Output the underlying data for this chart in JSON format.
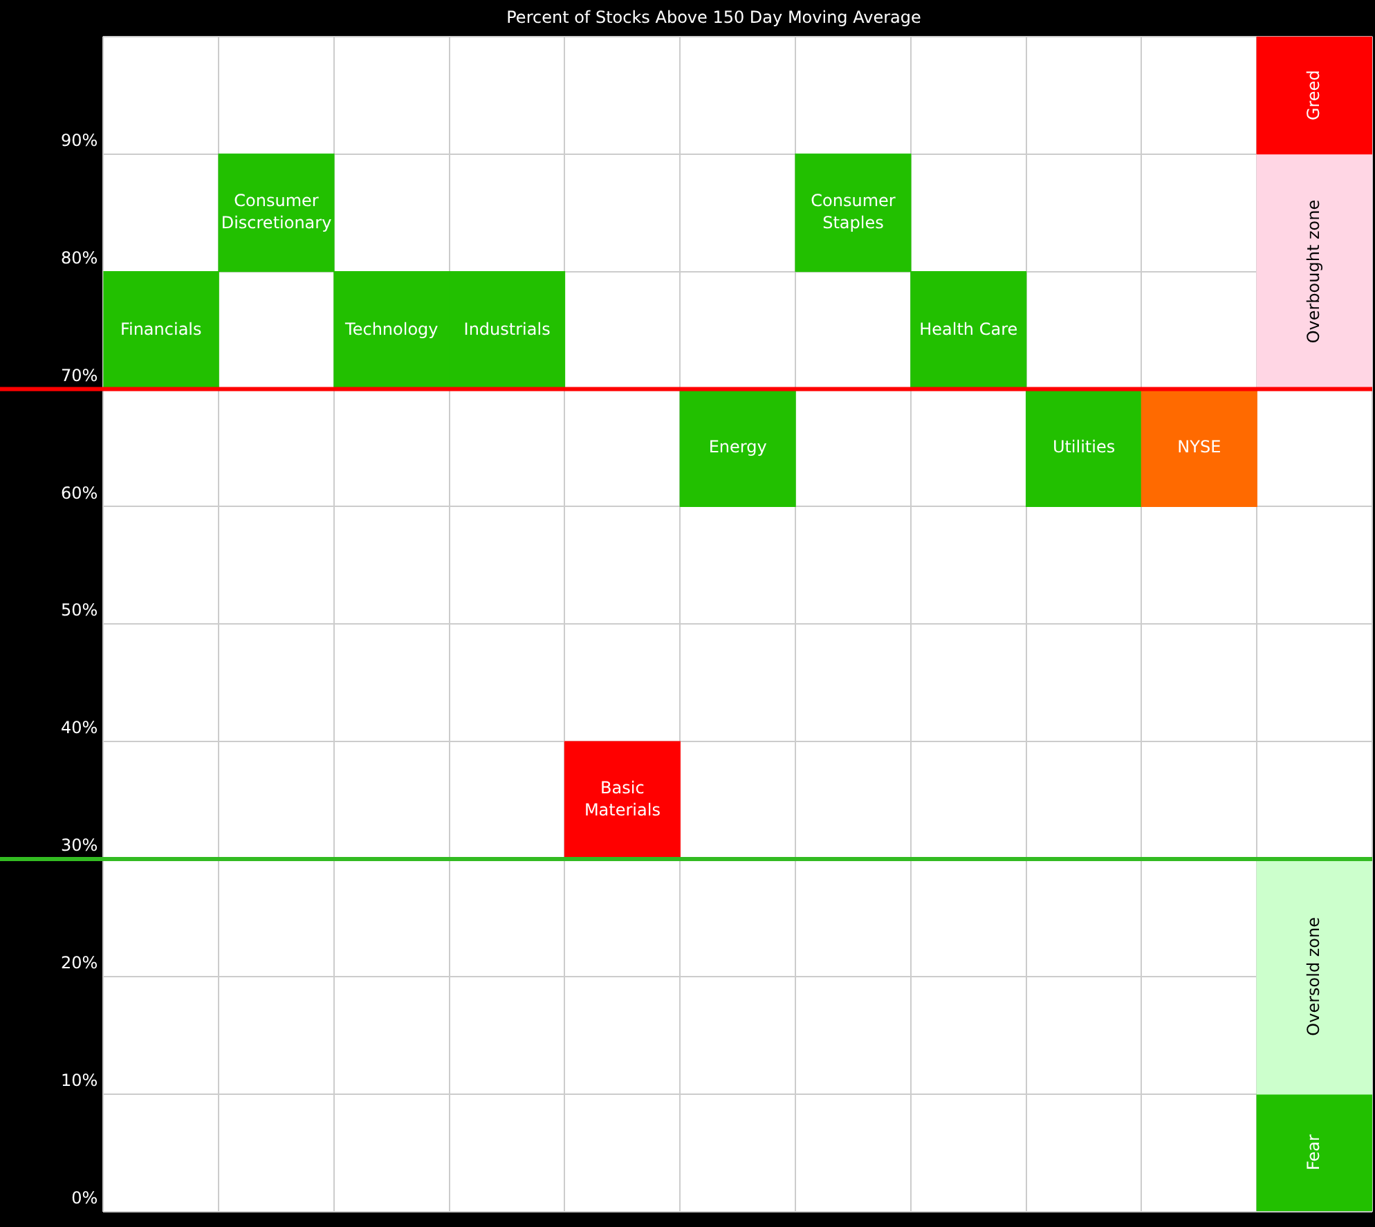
{
  "chart_data": {
    "type": "bar",
    "title": "Percent of Stocks Above 150 Day Moving Average",
    "categories": [
      "Financials",
      "Consumer Discretionary",
      "Technology",
      "Industrials",
      "Basic Materials",
      "Energy",
      "Consumer Staples",
      "Health Care",
      "Utilities",
      "NYSE",
      null
    ],
    "series": [
      {
        "colors": [
          "#22c000",
          "#22c000",
          "#22c000",
          "#22c000",
          "#ff0000",
          "#22c000",
          "#22c000",
          "#22c000",
          "#22c000",
          "#ff6a00",
          null
        ],
        "values": [
          10,
          10,
          10,
          10,
          10,
          10,
          10,
          10,
          10,
          10,
          null
        ],
        "base": [
          70,
          80,
          70,
          70,
          30,
          60,
          80,
          70,
          60,
          60,
          null
        ]
      },
      {
        "name": "Greed",
        "color": "#ff0000",
        "values": [
          null,
          null,
          null,
          null,
          null,
          null,
          null,
          null,
          null,
          null,
          10
        ],
        "base": [
          null,
          null,
          null,
          null,
          null,
          null,
          null,
          null,
          null,
          null,
          90
        ]
      },
      {
        "name": "Overbought zone",
        "color": "#ffd6e4",
        "values": [
          null,
          null,
          null,
          null,
          null,
          null,
          null,
          null,
          null,
          null,
          20
        ],
        "base": [
          null,
          null,
          null,
          null,
          null,
          null,
          null,
          null,
          null,
          null,
          70
        ]
      },
      {
        "name": "Oversold zone",
        "color": "#ccffcc",
        "values": [
          null,
          null,
          null,
          null,
          null,
          null,
          null,
          null,
          null,
          null,
          20
        ],
        "base": [
          null,
          null,
          null,
          null,
          null,
          null,
          null,
          null,
          null,
          null,
          10
        ]
      },
      {
        "name": "Fear",
        "color": "#22c000",
        "values": [
          null,
          null,
          null,
          null,
          null,
          null,
          null,
          null,
          null,
          null,
          10
        ],
        "base": [
          null,
          null,
          null,
          null,
          null,
          null,
          null,
          null,
          null,
          null,
          0
        ]
      }
    ],
    "ylim": [
      0,
      100
    ],
    "yticks": [
      {
        "value": 0,
        "label": "0%"
      },
      {
        "value": 10,
        "label": "10%"
      },
      {
        "value": 20,
        "label": "20%"
      },
      {
        "value": 30,
        "label": "30%"
      },
      {
        "value": 40,
        "label": "40%"
      },
      {
        "value": 50,
        "label": "50%"
      },
      {
        "value": 60,
        "label": "60%"
      },
      {
        "value": 70,
        "label": "70%"
      },
      {
        "value": 80,
        "label": "80%"
      },
      {
        "value": 90,
        "label": "90%"
      },
      {
        "value": 100,
        "label": null
      }
    ],
    "ref_lines": [
      {
        "axis": "y",
        "value": 70,
        "color": "#ff0000"
      },
      {
        "axis": "y",
        "value": 30,
        "color": "#33bb22"
      }
    ],
    "grid": true,
    "legend": false,
    "tick_labels": "y"
  }
}
